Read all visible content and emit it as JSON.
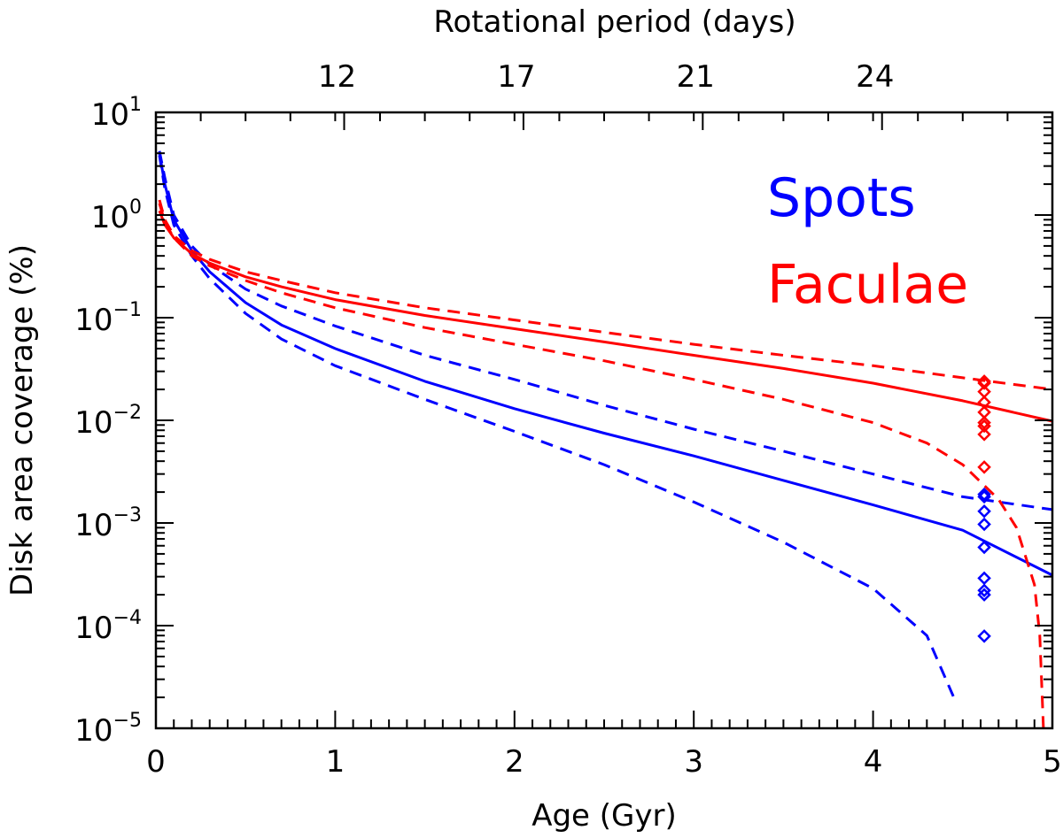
{
  "chart_data": {
    "type": "line",
    "title": "",
    "xlabel": "Age (Gyr)",
    "ylabel": "Disk area coverage (%)",
    "top_xlabel": "Rotational period (days)",
    "xlim": [
      0,
      5
    ],
    "ylim": [
      1e-05,
      10
    ],
    "yscale": "log",
    "grid": false,
    "x_ticks": [
      "0",
      "1",
      "2",
      "3",
      "4",
      "5"
    ],
    "y_ticks": [
      {
        "base": "10",
        "exp": "1"
      },
      {
        "base": "10",
        "exp": "0"
      },
      {
        "base": "10",
        "exp": "−1"
      },
      {
        "base": "10",
        "exp": "−2"
      },
      {
        "base": "10",
        "exp": "−3"
      },
      {
        "base": "10",
        "exp": "−4"
      },
      {
        "base": "10",
        "exp": "−5"
      }
    ],
    "top_ticks": [
      {
        "age": 1.05,
        "label": "12"
      },
      {
        "age": 2.05,
        "label": "17"
      },
      {
        "age": 3.05,
        "label": "21"
      },
      {
        "age": 4.05,
        "label": "24"
      }
    ],
    "legend": {
      "position": "top-right",
      "entries": [
        {
          "label": "Spots",
          "color": "#0000ff"
        },
        {
          "label": "Faculae",
          "color": "#ff0000"
        }
      ]
    },
    "colors": {
      "spots": "#0000ff",
      "faculae": "#ff0000"
    },
    "series": [
      {
        "name": "Spots (mean)",
        "color": "#0000ff",
        "style": "solid",
        "points": [
          [
            0.02,
            4.0
          ],
          [
            0.05,
            2.0
          ],
          [
            0.1,
            0.9
          ],
          [
            0.2,
            0.45
          ],
          [
            0.3,
            0.28
          ],
          [
            0.5,
            0.14
          ],
          [
            0.7,
            0.085
          ],
          [
            1.0,
            0.05
          ],
          [
            1.5,
            0.024
          ],
          [
            2.0,
            0.013
          ],
          [
            2.5,
            0.0075
          ],
          [
            3.0,
            0.0045
          ],
          [
            3.5,
            0.0026
          ],
          [
            4.0,
            0.0015
          ],
          [
            4.5,
            0.00085
          ],
          [
            5.0,
            0.00031
          ]
        ]
      },
      {
        "name": "Spots (upper)",
        "color": "#0000ff",
        "style": "dashed",
        "points": [
          [
            0.02,
            4.2
          ],
          [
            0.05,
            2.3
          ],
          [
            0.1,
            1.0
          ],
          [
            0.2,
            0.5
          ],
          [
            0.3,
            0.33
          ],
          [
            0.5,
            0.19
          ],
          [
            0.7,
            0.13
          ],
          [
            1.0,
            0.083
          ],
          [
            1.5,
            0.043
          ],
          [
            2.0,
            0.025
          ],
          [
            2.5,
            0.014
          ],
          [
            3.0,
            0.0082
          ],
          [
            3.5,
            0.005
          ],
          [
            4.0,
            0.003
          ],
          [
            4.5,
            0.0018
          ],
          [
            5.0,
            0.00135
          ]
        ]
      },
      {
        "name": "Spots (lower)",
        "color": "#0000ff",
        "style": "dashed",
        "points": [
          [
            0.02,
            3.8
          ],
          [
            0.05,
            1.8
          ],
          [
            0.1,
            0.8
          ],
          [
            0.2,
            0.4
          ],
          [
            0.3,
            0.24
          ],
          [
            0.5,
            0.11
          ],
          [
            0.7,
            0.062
          ],
          [
            1.0,
            0.034
          ],
          [
            1.5,
            0.016
          ],
          [
            2.0,
            0.0078
          ],
          [
            2.5,
            0.0037
          ],
          [
            3.0,
            0.0016
          ],
          [
            3.5,
            0.00065
          ],
          [
            4.0,
            0.00023
          ],
          [
            4.3,
            8e-05
          ],
          [
            4.45,
            2e-05
          ]
        ]
      },
      {
        "name": "Faculae (mean)",
        "color": "#ff0000",
        "style": "solid",
        "points": [
          [
            0.02,
            1.1
          ],
          [
            0.05,
            0.8
          ],
          [
            0.1,
            0.6
          ],
          [
            0.2,
            0.42
          ],
          [
            0.3,
            0.34
          ],
          [
            0.5,
            0.25
          ],
          [
            0.7,
            0.2
          ],
          [
            1.0,
            0.15
          ],
          [
            1.5,
            0.105
          ],
          [
            2.0,
            0.078
          ],
          [
            2.5,
            0.058
          ],
          [
            3.0,
            0.043
          ],
          [
            3.5,
            0.032
          ],
          [
            4.0,
            0.023
          ],
          [
            4.5,
            0.0155
          ],
          [
            5.0,
            0.0098
          ]
        ]
      },
      {
        "name": "Faculae (upper)",
        "color": "#ff0000",
        "style": "dashed",
        "points": [
          [
            0.02,
            1.4
          ],
          [
            0.05,
            0.9
          ],
          [
            0.1,
            0.63
          ],
          [
            0.2,
            0.45
          ],
          [
            0.3,
            0.37
          ],
          [
            0.5,
            0.28
          ],
          [
            0.7,
            0.23
          ],
          [
            1.0,
            0.175
          ],
          [
            1.5,
            0.125
          ],
          [
            2.0,
            0.095
          ],
          [
            2.5,
            0.072
          ],
          [
            3.0,
            0.055
          ],
          [
            3.5,
            0.043
          ],
          [
            4.0,
            0.034
          ],
          [
            4.5,
            0.026
          ],
          [
            5.0,
            0.02
          ]
        ]
      },
      {
        "name": "Faculae (lower)",
        "color": "#ff0000",
        "style": "dashed",
        "points": [
          [
            0.02,
            1.3
          ],
          [
            0.05,
            0.85
          ],
          [
            0.1,
            0.6
          ],
          [
            0.2,
            0.4
          ],
          [
            0.3,
            0.32
          ],
          [
            0.5,
            0.23
          ],
          [
            0.7,
            0.175
          ],
          [
            1.0,
            0.125
          ],
          [
            1.5,
            0.08
          ],
          [
            2.0,
            0.055
          ],
          [
            2.5,
            0.038
          ],
          [
            3.0,
            0.025
          ],
          [
            3.5,
            0.016
          ],
          [
            4.0,
            0.0095
          ],
          [
            4.3,
            0.006
          ],
          [
            4.5,
            0.0037
          ],
          [
            4.7,
            0.0017
          ],
          [
            4.8,
            0.0009
          ],
          [
            4.9,
            0.00025
          ],
          [
            4.93,
            8e-05
          ],
          [
            4.95,
            1e-05
          ]
        ]
      }
    ],
    "markers": [
      {
        "name": "Faculae observations",
        "color": "#ff0000",
        "symbol": "diamond",
        "x": 4.62,
        "y": [
          0.024,
          0.023,
          0.019,
          0.015,
          0.012,
          0.0095,
          0.0088,
          0.0073,
          0.0035
        ]
      },
      {
        "name": "Spots observations",
        "color": "#0000ff",
        "symbol": "diamond",
        "x": 4.62,
        "y": [
          0.0019,
          0.0018,
          0.0013,
          0.00097,
          0.00058,
          0.00029,
          0.00022,
          0.0002,
          7.9e-05
        ]
      }
    ]
  }
}
